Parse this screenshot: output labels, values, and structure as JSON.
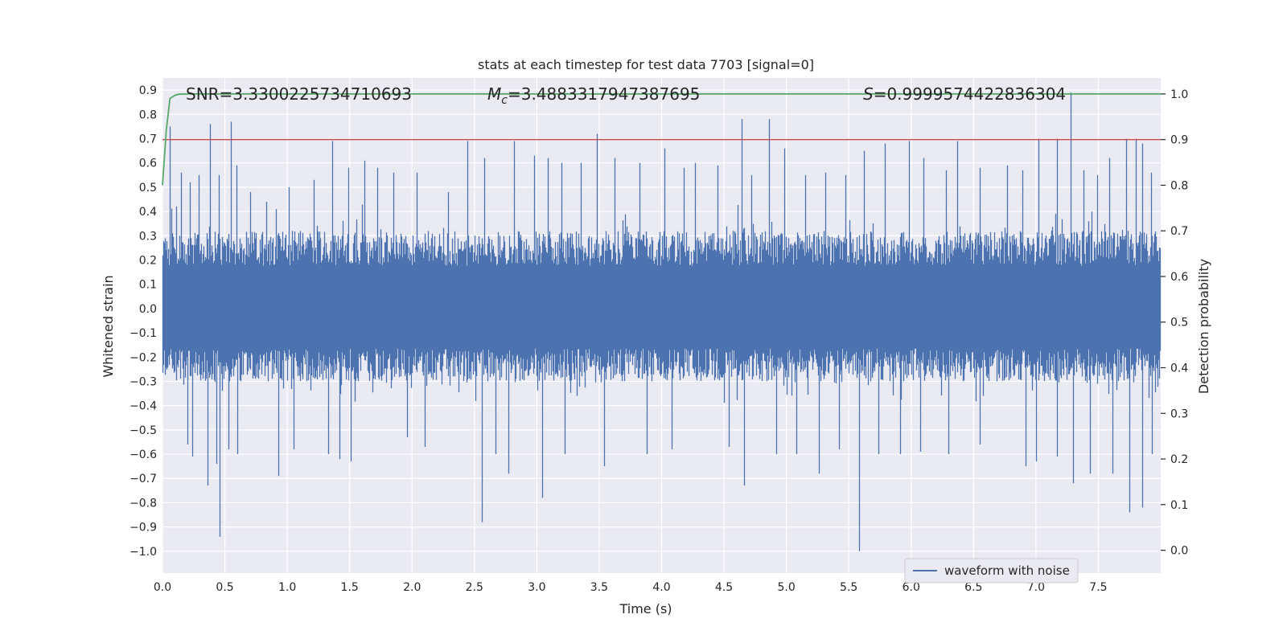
{
  "chart_data": {
    "type": "line",
    "title": "stats at each timestep for test data 7703 [signal=0]",
    "xlabel": "Time (s)",
    "ylabel_left": "Whitened strain",
    "ylabel_right": "Detection probability",
    "xlim": [
      0.0,
      8.0
    ],
    "ylim_left": [
      -1.09,
      0.95
    ],
    "ylim_right": [
      -0.05,
      1.035
    ],
    "xticks": [
      "0.0",
      "0.5",
      "1.0",
      "1.5",
      "2.0",
      "2.5",
      "3.0",
      "3.5",
      "4.0",
      "4.5",
      "5.0",
      "5.5",
      "6.0",
      "6.5",
      "7.0",
      "7.5"
    ],
    "yticks_left": [
      "0.9",
      "0.8",
      "0.7",
      "0.6",
      "0.5",
      "0.4",
      "0.3",
      "0.2",
      "0.1",
      "0.0",
      "−0.1",
      "−0.2",
      "−0.3",
      "−0.4",
      "−0.5",
      "−0.6",
      "−0.7",
      "−0.8",
      "−0.9",
      "−1.0"
    ],
    "yticks_right": [
      "1.0",
      "0.9",
      "0.8",
      "0.7",
      "0.6",
      "0.5",
      "0.4",
      "0.3",
      "0.2",
      "0.1",
      "0.0"
    ],
    "annotations": {
      "snr": "SNR=3.3300225734710693",
      "mc_symbol": "M",
      "mc_sub": "c",
      "mc_value": "=3.4883317947387695",
      "s_symbol": "S",
      "s_value": "=0.9999574422836304"
    },
    "legend": {
      "label": "waveform with noise",
      "placement": "lower-right"
    },
    "threshold": {
      "value": 0.9,
      "axis": "right",
      "color": "#c44e52"
    },
    "series": [
      {
        "name": "waveform with noise",
        "axis": "left",
        "color": "#4c72b0",
        "sample_rate": 2048,
        "duration": 8.0,
        "envelope_pos": 0.32,
        "envelope_neg": -0.3,
        "spikes": [
          [
            0.06,
            0.75
          ],
          [
            0.11,
            0.42
          ],
          [
            0.15,
            0.56
          ],
          [
            0.22,
            0.52
          ],
          [
            0.29,
            0.55
          ],
          [
            0.38,
            0.76
          ],
          [
            0.45,
            0.55
          ],
          [
            0.55,
            0.77
          ],
          [
            0.59,
            0.59
          ],
          [
            0.7,
            0.48
          ],
          [
            0.83,
            0.44
          ],
          [
            0.91,
            0.41
          ],
          [
            1.01,
            0.5
          ],
          [
            1.21,
            0.53
          ],
          [
            1.36,
            0.69
          ],
          [
            1.49,
            0.58
          ],
          [
            1.62,
            0.61
          ],
          [
            1.72,
            0.58
          ],
          [
            1.85,
            0.56
          ],
          [
            2.04,
            0.56
          ],
          [
            2.29,
            0.48
          ],
          [
            2.44,
            0.69
          ],
          [
            2.58,
            0.62
          ],
          [
            2.82,
            0.69
          ],
          [
            2.98,
            0.63
          ],
          [
            3.09,
            0.62
          ],
          [
            3.2,
            0.6
          ],
          [
            3.35,
            0.6
          ],
          [
            3.48,
            0.72
          ],
          [
            3.62,
            0.62
          ],
          [
            3.82,
            0.6
          ],
          [
            4.02,
            0.66
          ],
          [
            4.18,
            0.58
          ],
          [
            4.27,
            0.6
          ],
          [
            4.45,
            0.59
          ],
          [
            4.64,
            0.78
          ],
          [
            4.72,
            0.55
          ],
          [
            4.86,
            0.78
          ],
          [
            4.98,
            0.66
          ],
          [
            5.15,
            0.55
          ],
          [
            5.31,
            0.56
          ],
          [
            5.47,
            0.55
          ],
          [
            5.62,
            0.65
          ],
          [
            5.79,
            0.68
          ],
          [
            5.98,
            0.69
          ],
          [
            6.1,
            0.62
          ],
          [
            6.28,
            0.57
          ],
          [
            6.37,
            0.69
          ],
          [
            6.55,
            0.58
          ],
          [
            6.77,
            0.59
          ],
          [
            6.89,
            0.57
          ],
          [
            7.02,
            0.7
          ],
          [
            7.17,
            0.7
          ],
          [
            7.28,
            0.89
          ],
          [
            7.38,
            0.57
          ],
          [
            7.49,
            0.55
          ],
          [
            7.59,
            0.62
          ],
          [
            7.72,
            0.7
          ],
          [
            7.8,
            0.7
          ],
          [
            7.85,
            0.68
          ],
          [
            7.92,
            0.56
          ],
          [
            0.2,
            -0.56
          ],
          [
            0.24,
            -0.61
          ],
          [
            0.36,
            -0.73
          ],
          [
            0.43,
            -0.64
          ],
          [
            0.46,
            -0.94
          ],
          [
            0.53,
            -0.58
          ],
          [
            0.6,
            -0.6
          ],
          [
            0.93,
            -0.69
          ],
          [
            1.05,
            -0.58
          ],
          [
            1.33,
            -0.6
          ],
          [
            1.42,
            -0.62
          ],
          [
            1.51,
            -0.63
          ],
          [
            1.96,
            -0.53
          ],
          [
            2.1,
            -0.57
          ],
          [
            2.56,
            -0.88
          ],
          [
            2.67,
            -0.6
          ],
          [
            2.77,
            -0.68
          ],
          [
            3.04,
            -0.78
          ],
          [
            3.22,
            -0.6
          ],
          [
            3.54,
            -0.65
          ],
          [
            3.88,
            -0.6
          ],
          [
            4.08,
            -0.58
          ],
          [
            4.54,
            -0.57
          ],
          [
            4.66,
            -0.73
          ],
          [
            4.92,
            -0.6
          ],
          [
            5.08,
            -0.6
          ],
          [
            5.26,
            -0.68
          ],
          [
            5.42,
            -0.58
          ],
          [
            5.58,
            -1.0
          ],
          [
            5.74,
            -0.6
          ],
          [
            5.91,
            -0.6
          ],
          [
            6.07,
            -0.59
          ],
          [
            6.3,
            -0.6
          ],
          [
            6.55,
            -0.56
          ],
          [
            6.92,
            -0.65
          ],
          [
            7.0,
            -0.63
          ],
          [
            7.17,
            -0.61
          ],
          [
            7.3,
            -0.72
          ],
          [
            7.43,
            -0.68
          ],
          [
            7.61,
            -0.68
          ],
          [
            7.75,
            -0.84
          ],
          [
            7.85,
            -0.82
          ],
          [
            7.93,
            -0.6
          ]
        ]
      },
      {
        "name": "detection probability",
        "axis": "right",
        "color": "#55a868",
        "x": [
          0.0,
          0.03,
          0.06,
          0.1,
          0.13,
          0.2,
          1.0,
          2.0,
          3.0,
          4.0,
          5.0,
          6.0,
          7.0,
          8.0
        ],
        "values": [
          0.8,
          0.92,
          0.99,
          0.997,
          0.9995,
          0.99997,
          0.99997,
          0.99997,
          0.99997,
          0.99997,
          0.99997,
          0.99997,
          0.99997,
          0.99996
        ]
      }
    ]
  }
}
